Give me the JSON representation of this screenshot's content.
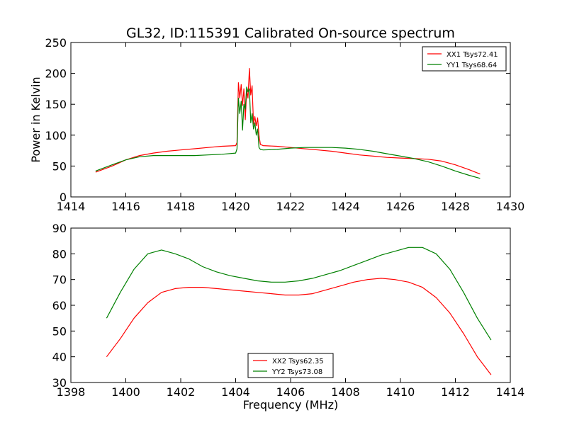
{
  "figure": {
    "title": "GL32, ID:115391 Calibrated On-source spectrum"
  },
  "chart_data": [
    {
      "type": "line",
      "title": "GL32, ID:115391 Calibrated On-source spectrum",
      "xlabel": "",
      "ylabel": "Power in Kelvin",
      "xlim": [
        1414,
        1430
      ],
      "ylim": [
        0,
        250
      ],
      "xticks": [
        1414,
        1416,
        1418,
        1420,
        1422,
        1424,
        1426,
        1428,
        1430
      ],
      "yticks": [
        0,
        50,
        100,
        150,
        200,
        250
      ],
      "legend": "top-right",
      "grid": false,
      "series": [
        {
          "name": "XX1 Tsys72.41",
          "color": "#ff0000",
          "x": [
            1414.9,
            1415.5,
            1416.0,
            1416.5,
            1417.0,
            1417.5,
            1418.0,
            1418.5,
            1419.0,
            1419.5,
            1420.0,
            1420.05,
            1420.1,
            1420.15,
            1420.2,
            1420.25,
            1420.3,
            1420.35,
            1420.4,
            1420.45,
            1420.5,
            1420.55,
            1420.6,
            1420.65,
            1420.7,
            1420.75,
            1420.8,
            1420.85,
            1420.9,
            1421.0,
            1421.5,
            1422.0,
            1422.5,
            1423.0,
            1423.5,
            1424.0,
            1424.5,
            1425.0,
            1425.5,
            1426.0,
            1426.5,
            1427.0,
            1427.5,
            1428.0,
            1428.5,
            1428.9
          ],
          "y": [
            40,
            50,
            60,
            67,
            71,
            74,
            76,
            78,
            80,
            82,
            83,
            88,
            185,
            160,
            182,
            148,
            175,
            125,
            172,
            160,
            208,
            165,
            180,
            118,
            130,
            115,
            128,
            100,
            85,
            83,
            82,
            80,
            78,
            76,
            74,
            71,
            68,
            66,
            64,
            63,
            62,
            61,
            58,
            52,
            44,
            37
          ]
        },
        {
          "name": "YY1 Tsys68.64",
          "color": "#008000",
          "x": [
            1414.9,
            1415.5,
            1416.0,
            1416.5,
            1417.0,
            1417.5,
            1418.0,
            1418.5,
            1419.0,
            1419.5,
            1420.0,
            1420.05,
            1420.1,
            1420.15,
            1420.2,
            1420.25,
            1420.3,
            1420.35,
            1420.4,
            1420.45,
            1420.5,
            1420.55,
            1420.6,
            1420.65,
            1420.7,
            1420.75,
            1420.8,
            1420.85,
            1420.9,
            1421.0,
            1421.5,
            1422.0,
            1422.5,
            1423.0,
            1423.5,
            1424.0,
            1424.5,
            1425.0,
            1425.5,
            1426.0,
            1426.5,
            1427.0,
            1427.5,
            1428.0,
            1428.5,
            1428.9
          ],
          "y": [
            42,
            52,
            60,
            65,
            67,
            67,
            67,
            67,
            68,
            69,
            71,
            78,
            160,
            135,
            155,
            108,
            150,
            142,
            178,
            170,
            175,
            120,
            135,
            110,
            120,
            100,
            110,
            80,
            77,
            76,
            77,
            79,
            80,
            80,
            80,
            79,
            77,
            74,
            70,
            66,
            62,
            57,
            50,
            42,
            35,
            30
          ]
        }
      ]
    },
    {
      "type": "line",
      "title": "",
      "xlabel": "Frequency (MHz)",
      "ylabel": "",
      "xlim": [
        1398,
        1414
      ],
      "ylim": [
        30,
        90
      ],
      "xticks": [
        1398,
        1400,
        1402,
        1404,
        1406,
        1408,
        1410,
        1412,
        1414
      ],
      "yticks": [
        30,
        40,
        50,
        60,
        70,
        80,
        90
      ],
      "legend": "bottom-center",
      "grid": false,
      "series": [
        {
          "name": "XX2 Tsys62.35",
          "color": "#ff0000",
          "x": [
            1399.3,
            1399.8,
            1400.3,
            1400.8,
            1401.3,
            1401.8,
            1402.3,
            1402.8,
            1403.3,
            1403.8,
            1404.3,
            1404.8,
            1405.3,
            1405.8,
            1406.3,
            1406.8,
            1407.3,
            1407.8,
            1408.3,
            1408.8,
            1409.3,
            1409.8,
            1410.3,
            1410.8,
            1411.3,
            1411.8,
            1412.3,
            1412.8,
            1413.3
          ],
          "y": [
            40,
            47,
            55,
            61,
            65,
            66.5,
            67,
            67,
            66.5,
            66,
            65.5,
            65,
            64.5,
            64,
            64,
            64.5,
            66,
            67.5,
            69,
            70,
            70.5,
            70,
            69,
            67,
            63,
            57,
            49,
            40,
            33
          ]
        },
        {
          "name": "YY2 Tsys73.08",
          "color": "#008000",
          "x": [
            1399.3,
            1399.8,
            1400.3,
            1400.8,
            1401.3,
            1401.8,
            1402.3,
            1402.8,
            1403.3,
            1403.8,
            1404.3,
            1404.8,
            1405.3,
            1405.8,
            1406.3,
            1406.8,
            1407.3,
            1407.8,
            1408.3,
            1408.8,
            1409.3,
            1409.8,
            1410.3,
            1410.8,
            1411.3,
            1411.8,
            1412.3,
            1412.8,
            1413.3
          ],
          "y": [
            55,
            65,
            74,
            80,
            81.5,
            80,
            78,
            75,
            73,
            71.5,
            70.5,
            69.5,
            69,
            69,
            69.5,
            70.5,
            72,
            73.5,
            75.5,
            77.5,
            79.5,
            81,
            82.5,
            82.5,
            80,
            74,
            65,
            55,
            46.5
          ]
        }
      ]
    }
  ]
}
